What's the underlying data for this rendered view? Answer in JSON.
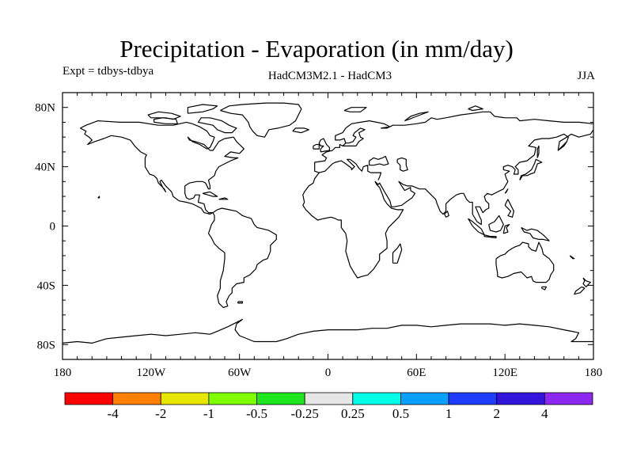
{
  "header": {
    "title": "Precipitation - Evaporation (in mm/day)",
    "experiment": "Expt = tdbys-tdbya",
    "models": "HadCM3M2.1 - HadCM3",
    "season": "JJA"
  },
  "map": {
    "projection": "cylindrical equidistant",
    "lon_range": [
      -180,
      180
    ],
    "lat_range": [
      -90,
      90
    ],
    "lat_tick_labels": [
      "80N",
      "40N",
      "0",
      "40S",
      "80S"
    ],
    "lon_tick_labels": [
      "180",
      "120W",
      "60W",
      "0",
      "60E",
      "120E",
      "180"
    ],
    "coastline_color": "#000000",
    "field_shading": "none visible"
  },
  "colorbar": {
    "colors": [
      "#ff0000",
      "#ff8000",
      "#e6e600",
      "#80ff00",
      "#1ee61e",
      "#e6e6e6",
      "#00ffe6",
      "#0aa0ff",
      "#1e3cff",
      "#3214dc",
      "#8c28f0"
    ],
    "labels": [
      "-4",
      "-2",
      "-1",
      "-0.5",
      "-0.25",
      "0.25",
      "0.5",
      "1",
      "2",
      "4"
    ]
  }
}
